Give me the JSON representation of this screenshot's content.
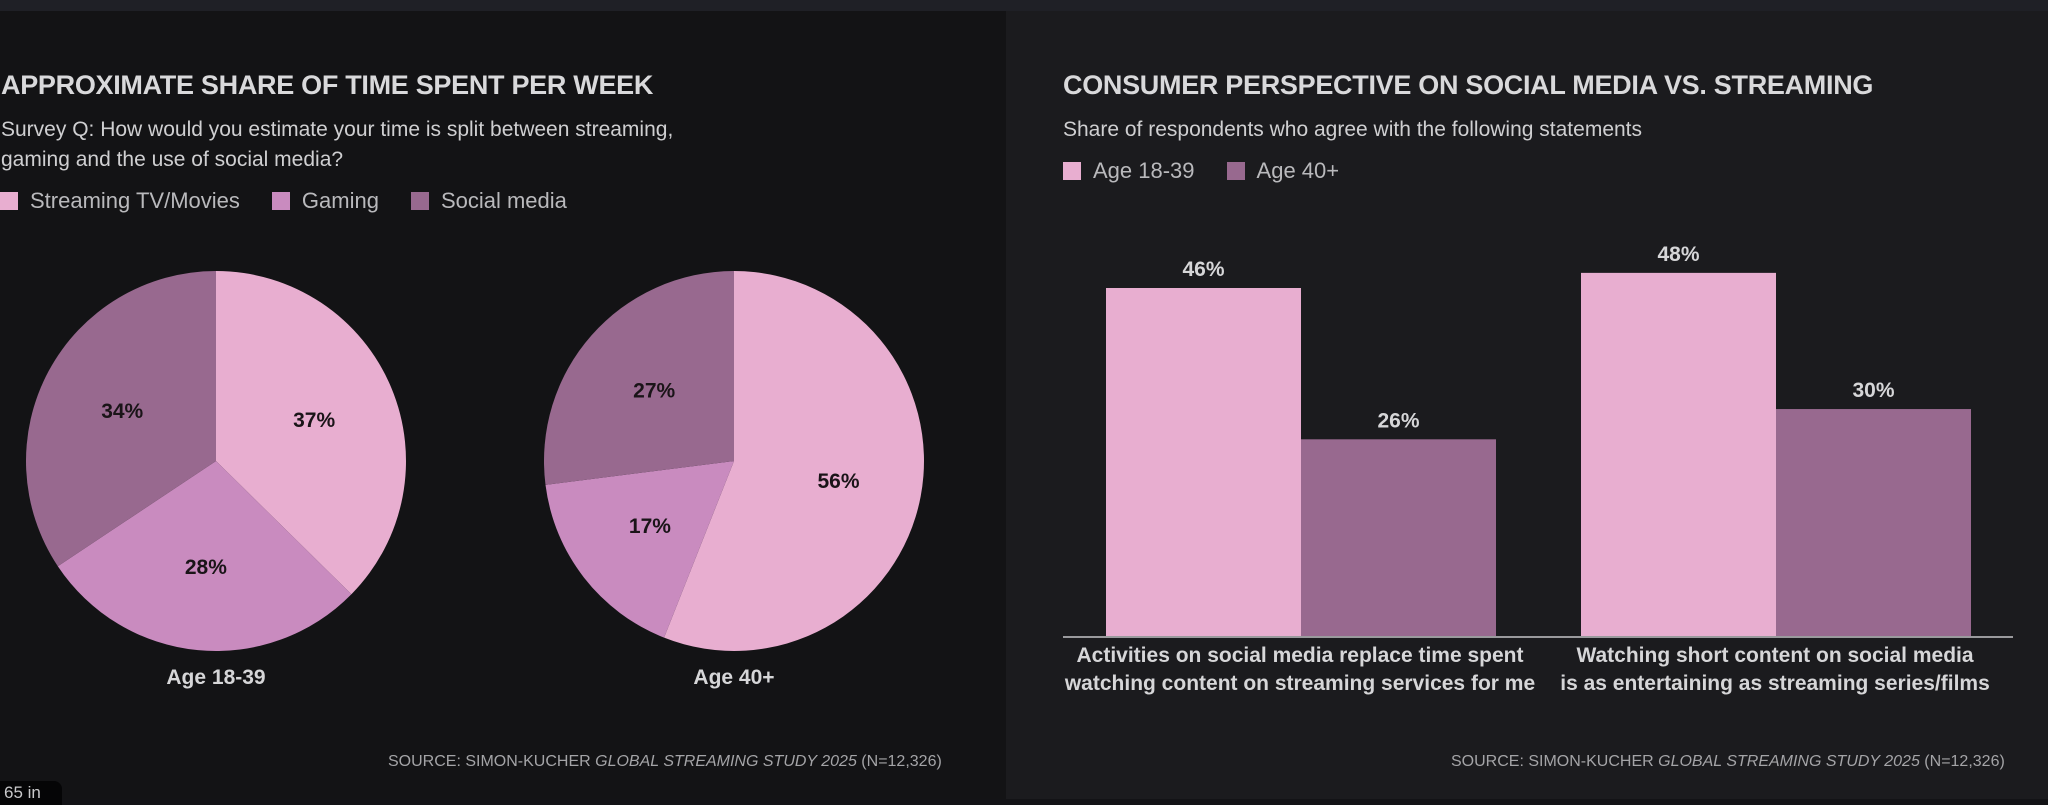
{
  "colors": {
    "streaming": "#e8aed0",
    "gaming": "#c98bbf",
    "social": "#98698f",
    "age_18_39": "#e8aed0",
    "age_40_plus": "#98698f",
    "label_dark": "#1a1418",
    "label_light": "#d6d6d8",
    "axis": "#9a9a9d"
  },
  "left": {
    "title": "APPROXIMATE SHARE OF TIME SPENT PER WEEK",
    "subtitle_line1": "Survey Q: How would you estimate your time is split between streaming,",
    "subtitle_line2": "gaming and the use of social media?",
    "legend": [
      "Streaming TV/Movies",
      "Gaming",
      "Social media"
    ],
    "source_prefix": "SOURCE: SIMON-KUCHER ",
    "source_italic": "GLOBAL STREAMING STUDY 2025",
    "source_suffix": " (N=12,326)"
  },
  "right": {
    "title": "CONSUMER PERSPECTIVE ON SOCIAL MEDIA VS. STREAMING",
    "subtitle": "Share of respondents who agree with the following statements",
    "legend": [
      "Age 18-39",
      "Age 40+"
    ],
    "source_prefix": "SOURCE: SIMON-KUCHER ",
    "source_italic": "GLOBAL STREAMING STUDY 2025",
    "source_suffix": " (N=12,326)"
  },
  "zoom_badge": "65 in",
  "chart_data": [
    {
      "type": "pie",
      "title": "Age 18-39",
      "labels": [
        "Streaming TV/Movies",
        "Gaming",
        "Social media"
      ],
      "values": [
        37,
        28,
        34
      ],
      "value_labels": [
        "37%",
        "28%",
        "34%"
      ],
      "start": "12 o'clock, clockwise"
    },
    {
      "type": "pie",
      "title": "Age 40+",
      "labels": [
        "Streaming TV/Movies",
        "Gaming",
        "Social media"
      ],
      "values": [
        56,
        17,
        27
      ],
      "value_labels": [
        "56%",
        "17%",
        "27%"
      ],
      "start": "12 o'clock, clockwise"
    },
    {
      "type": "bar",
      "title": "CONSUMER PERSPECTIVE ON SOCIAL MEDIA VS. STREAMING",
      "categories": [
        [
          "Activities on social media replace time spent",
          "watching content on streaming services for me"
        ],
        [
          "Watching short content on social media",
          "is as entertaining as streaming series/films"
        ]
      ],
      "series": [
        {
          "name": "Age 18-39",
          "values": [
            46,
            48
          ]
        },
        {
          "name": "Age 40+",
          "values": [
            26,
            30
          ]
        }
      ],
      "value_suffix": "%",
      "ylim": [
        0,
        51
      ],
      "grid": false,
      "legend": "top-left"
    }
  ]
}
